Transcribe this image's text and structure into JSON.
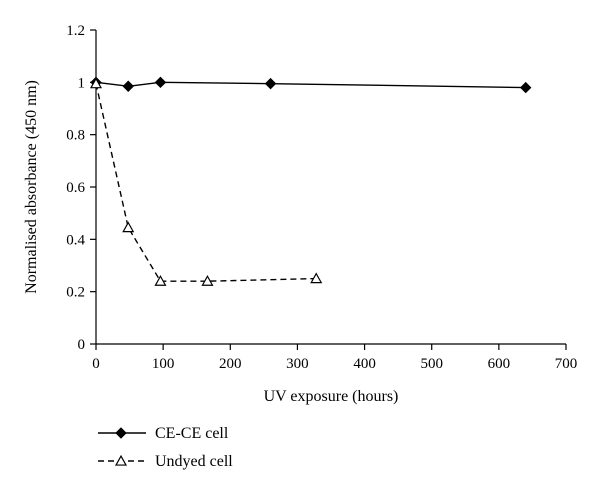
{
  "chart_data": {
    "type": "line",
    "xlabel": "UV exposure (hours)",
    "ylabel": "Normalised absorbance (450 nm)",
    "xlim": [
      0,
      700
    ],
    "ylim": [
      0,
      1.2
    ],
    "x_ticks": [
      0,
      100,
      200,
      300,
      400,
      500,
      600,
      700
    ],
    "y_ticks": [
      0,
      0.2,
      0.4,
      0.6,
      0.8,
      1,
      1.2
    ],
    "x_tick_labels": [
      "0",
      "100",
      "200",
      "300",
      "400",
      "500",
      "600",
      "700"
    ],
    "y_tick_labels": [
      "0",
      "0.2",
      "0.4",
      "0.6",
      "0.8",
      "1",
      "1.2"
    ],
    "grid": false,
    "legend_position": "bottom-left",
    "series": [
      {
        "name": "CE-CE cell",
        "marker": "filled-diamond",
        "line_style": "solid",
        "color": "#000000",
        "x": [
          0,
          48,
          96,
          260,
          640
        ],
        "y": [
          1.0,
          0.985,
          1.0,
          0.995,
          0.98
        ]
      },
      {
        "name": "Undyed cell",
        "marker": "open-triangle",
        "line_style": "dashed",
        "color": "#000000",
        "x": [
          0,
          48,
          96,
          166,
          328
        ],
        "y": [
          0.995,
          0.445,
          0.24,
          0.24,
          0.25
        ]
      }
    ]
  }
}
